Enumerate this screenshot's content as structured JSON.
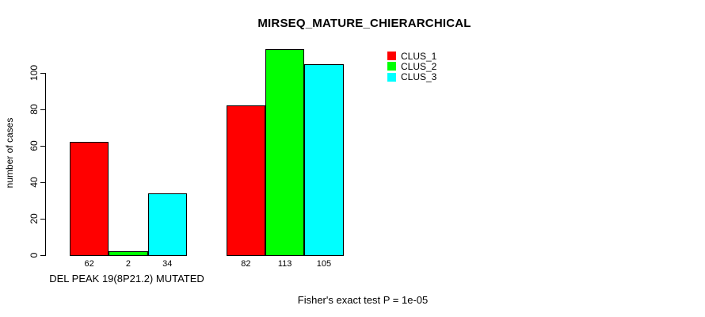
{
  "title": "MIRSEQ_MATURE_CHIERARCHICAL",
  "annotation": "Fisher's exact test P = 1e-05",
  "chart_data": {
    "type": "bar",
    "title": "MIRSEQ_MATURE_CHIERARCHICAL",
    "ylabel": "number of cases",
    "xlabel": "",
    "groups": [
      "DEL PEAK 19(8P21.2) MUTATED",
      ""
    ],
    "series": [
      {
        "name": "CLUS_1",
        "color": "#FF0000",
        "values": [
          62,
          82
        ]
      },
      {
        "name": "CLUS_2",
        "color": "#00FF00",
        "values": [
          2,
          113
        ]
      },
      {
        "name": "CLUS_3",
        "color": "#00FFFF",
        "values": [
          34,
          105
        ]
      }
    ],
    "yticks": [
      0,
      20,
      40,
      60,
      80,
      100
    ],
    "ylim": [
      0,
      115
    ],
    "grid": false,
    "bar_value_labels": true,
    "legend_position": "top-right",
    "footnote": "Fisher's exact test P = 1e-05",
    "axis_color": "#000000",
    "bar_border_color": "#000000"
  }
}
